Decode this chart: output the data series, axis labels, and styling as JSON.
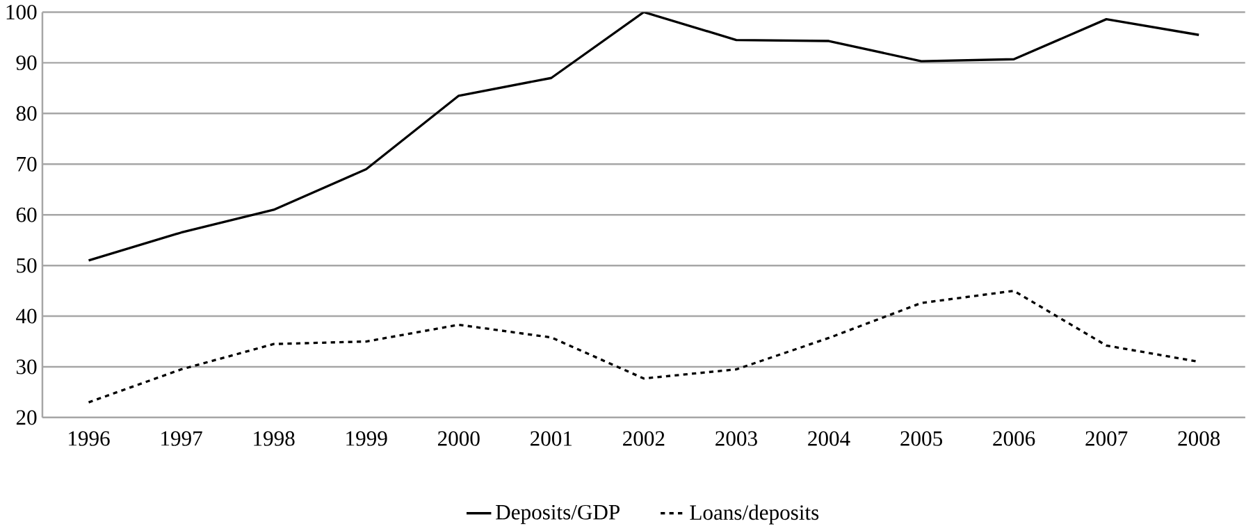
{
  "chart_data": {
    "type": "line",
    "categories": [
      "1996",
      "1997",
      "1998",
      "1999",
      "2000",
      "2001",
      "2002",
      "2003",
      "2004",
      "2005",
      "2006",
      "2007",
      "2008"
    ],
    "series": [
      {
        "name": "Deposits/GDP",
        "color": "#000000",
        "line_style": "solid",
        "values": [
          51,
          56.5,
          61,
          69,
          83.5,
          87,
          100,
          94.5,
          94.3,
          90.3,
          90.7,
          98.6,
          95.5
        ]
      },
      {
        "name": "Loans/deposits",
        "color": "#000000",
        "line_style": "dashed",
        "values": [
          23,
          29.5,
          34.5,
          35,
          38.3,
          35.8,
          27.7,
          29.5,
          35.7,
          42.6,
          45,
          34.2,
          31
        ]
      }
    ],
    "ylim": [
      20,
      100
    ],
    "yticks": [
      20,
      30,
      40,
      50,
      60,
      70,
      80,
      90,
      100
    ],
    "grid": "y",
    "legend": "bottom",
    "marker": "none"
  }
}
